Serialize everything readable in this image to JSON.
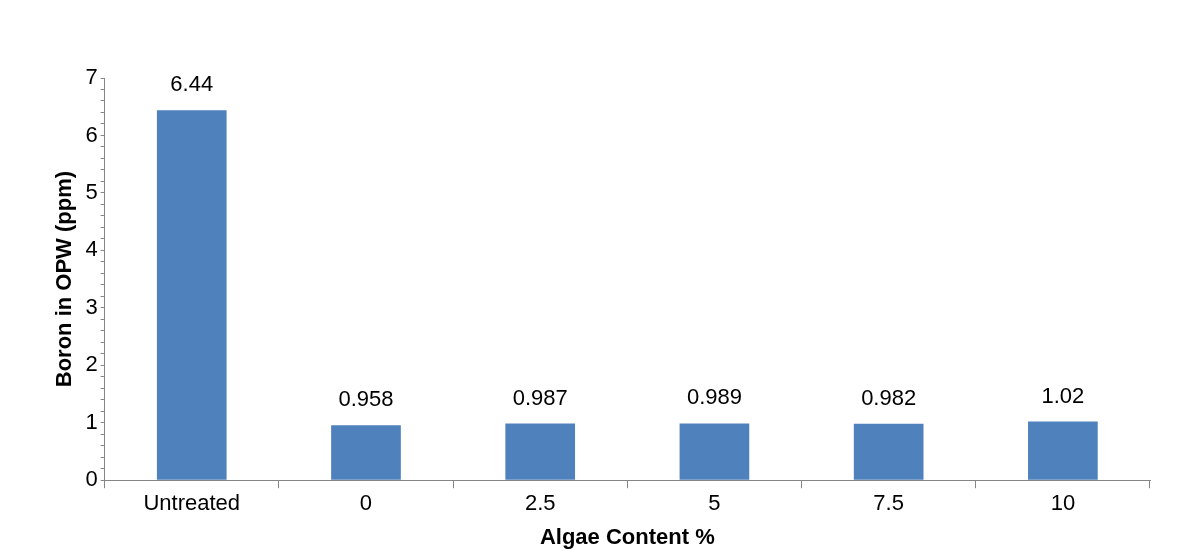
{
  "chart_data": {
    "type": "bar",
    "xlabel": "Algae Content %",
    "ylabel": "Boron in OPW (ppm)",
    "categories": [
      "Untreated",
      "0",
      "2.5",
      "5",
      "7.5",
      "10"
    ],
    "values": [
      6.44,
      0.958,
      0.987,
      0.989,
      0.982,
      1.02
    ],
    "color": "#4f81bd",
    "ylim": [
      0,
      7
    ],
    "yticks": [
      0,
      {
        "value": 0.2,
        "label": null
      },
      {
        "value": 0.4,
        "label": null
      },
      {
        "value": 0.6,
        "label": null
      },
      {
        "value": 0.8,
        "label": null
      },
      1,
      {
        "value": 1.2,
        "label": null
      },
      {
        "value": 1.4,
        "label": null
      },
      {
        "value": 1.6,
        "label": null
      },
      {
        "value": 1.8,
        "label": null
      },
      2,
      {
        "value": 2.2,
        "label": null
      },
      {
        "value": 2.4,
        "label": null
      },
      {
        "value": 2.6,
        "label": null
      },
      {
        "value": 2.8,
        "label": null
      },
      3,
      {
        "value": 3.2,
        "label": null
      },
      {
        "value": 3.4,
        "label": null
      },
      {
        "value": 3.6,
        "label": null
      },
      {
        "value": 3.8,
        "label": null
      },
      4,
      {
        "value": 4.2,
        "label": null
      },
      {
        "value": 4.4,
        "label": null
      },
      {
        "value": 4.6,
        "label": null
      },
      {
        "value": 4.8,
        "label": null
      },
      5,
      {
        "value": 5.2,
        "label": null
      },
      {
        "value": 5.4,
        "label": null
      },
      {
        "value": 5.6,
        "label": null
      },
      {
        "value": 5.8,
        "label": null
      },
      6,
      {
        "value": 6.2,
        "label": null
      },
      {
        "value": 6.4,
        "label": null
      },
      {
        "value": 6.6,
        "label": null
      },
      {
        "value": 6.8,
        "label": null
      },
      7
    ],
    "data_labels": true,
    "grid": false,
    "legend": false
  }
}
